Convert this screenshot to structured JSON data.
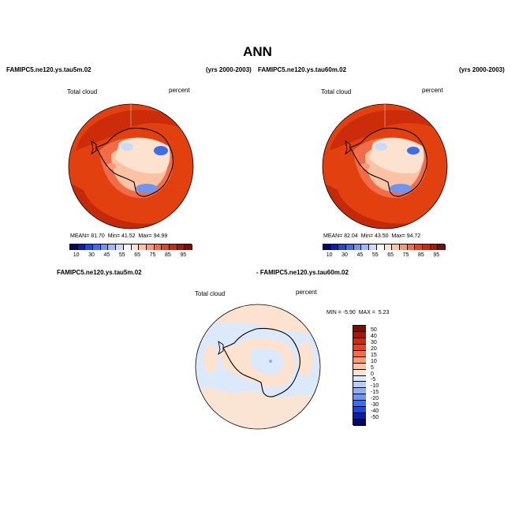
{
  "title": "ANN",
  "left_panel": {
    "case": "FAMIPC5.ne120.ys.tau5m.02",
    "years": "(yrs 2000-2003)",
    "variable": "Total cloud",
    "units": "percent",
    "stats": {
      "mean_label": "MEAN=",
      "mean": "81.70",
      "min_label": "Min=",
      "min": "41.52",
      "max_label": "Max=",
      "max": "94.99"
    }
  },
  "right_panel": {
    "case": "FAMIPC5.ne120.ys.tau60m.02",
    "years": "(yrs 2000-2003)",
    "variable": "Total cloud",
    "units": "percent",
    "stats": {
      "mean_label": "MEAN=",
      "mean": "82.04",
      "min_label": "Min=",
      "min": "43.50",
      "max_label": "Max=",
      "max": "94.72"
    }
  },
  "diff_panel": {
    "case_a": "FAMIPC5.ne120.ys.tau5m.02",
    "case_b": "- FAMIPC5.ne120.ys.tau60m.02",
    "variable": "Total cloud",
    "units": "percent",
    "stats": {
      "min_label": "MIN =",
      "min": "-5.90",
      "max_label": "MAX =",
      "max": "5.23"
    }
  },
  "colorbar_main": {
    "ticks": [
      "10",
      "30",
      "45",
      "55",
      "65",
      "75",
      "85",
      "95"
    ],
    "colors": [
      "#02066f",
      "#0a1fa8",
      "#1d47d6",
      "#3f6de8",
      "#6f95ee",
      "#9db9f3",
      "#c8dbf8",
      "#ffffff",
      "#fde3cf",
      "#fbc3a3",
      "#f79a74",
      "#f26d47",
      "#e8421c",
      "#cc2a0a",
      "#a6180a",
      "#7b0c05"
    ]
  },
  "colorbar_diff": {
    "ticks": [
      "50",
      "40",
      "30",
      "20",
      "15",
      "10",
      "5",
      "0",
      "-5",
      "-10",
      "-15",
      "-20",
      "-30",
      "-40",
      "-50"
    ],
    "colors": [
      "#7b0c05",
      "#a6180a",
      "#cc2a0a",
      "#e8421c",
      "#f26d47",
      "#f79a74",
      "#fbc3a3",
      "#fde3cf",
      "#dce9fb",
      "#b6cdf6",
      "#8fb0f0",
      "#6f95ee",
      "#3f6de8",
      "#1d47d6",
      "#0a1fa8",
      "#02066f"
    ]
  }
}
